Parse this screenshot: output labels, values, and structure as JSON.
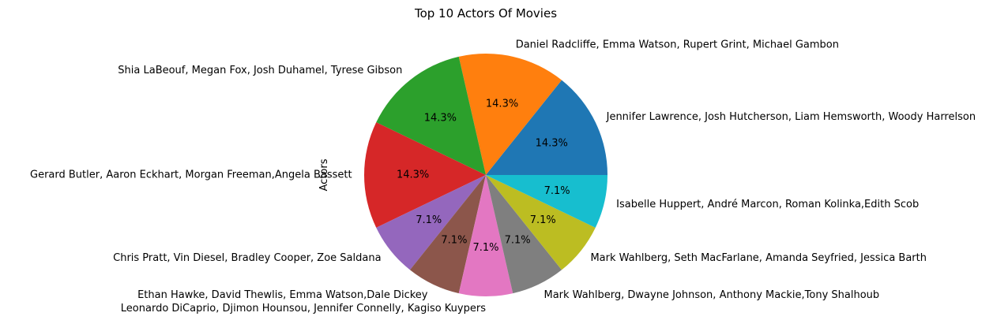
{
  "chart_data": {
    "type": "pie",
    "title": "Top 10 Actors Of Movies",
    "ylabel": "Actors",
    "start_angle_deg": 0,
    "direction": "counterclockwise",
    "slices": [
      {
        "label": "Jennifer Lawrence, Josh Hutcherson, Liam Hemsworth, Woody Harrelson",
        "value": 2,
        "percent_label": "14.3%",
        "color": "#1f77b4"
      },
      {
        "label": "Daniel Radcliffe, Emma Watson, Rupert Grint, Michael Gambon",
        "value": 2,
        "percent_label": "14.3%",
        "color": "#ff7f0e"
      },
      {
        "label": "Shia LaBeouf, Megan Fox, Josh Duhamel, Tyrese Gibson",
        "value": 2,
        "percent_label": "14.3%",
        "color": "#2ca02c"
      },
      {
        "label": "Gerard Butler, Aaron Eckhart, Morgan Freeman,Angela Bassett",
        "value": 2,
        "percent_label": "14.3%",
        "color": "#d62728"
      },
      {
        "label": "Chris Pratt, Vin Diesel, Bradley Cooper, Zoe Saldana",
        "value": 1,
        "percent_label": "7.1%",
        "color": "#9467bd"
      },
      {
        "label": "Ethan Hawke, David Thewlis, Emma Watson,Dale Dickey",
        "value": 1,
        "percent_label": "7.1%",
        "color": "#8c564b"
      },
      {
        "label": "Leonardo DiCaprio, Djimon Hounsou, Jennifer Connelly, Kagiso Kuypers",
        "value": 1,
        "percent_label": "7.1%",
        "color": "#e377c2"
      },
      {
        "label": "Mark Wahlberg, Dwayne Johnson, Anthony Mackie,Tony Shalhoub",
        "value": 1,
        "percent_label": "7.1%",
        "color": "#7f7f7f"
      },
      {
        "label": "Mark Wahlberg, Seth MacFarlane, Amanda Seyfried, Jessica Barth",
        "value": 1,
        "percent_label": "7.1%",
        "color": "#bcbd22"
      },
      {
        "label": "Isabelle Huppert, André Marcon, Roman Kolinka,Edith Scob",
        "value": 1,
        "percent_label": "7.1%",
        "color": "#17becf"
      }
    ]
  }
}
